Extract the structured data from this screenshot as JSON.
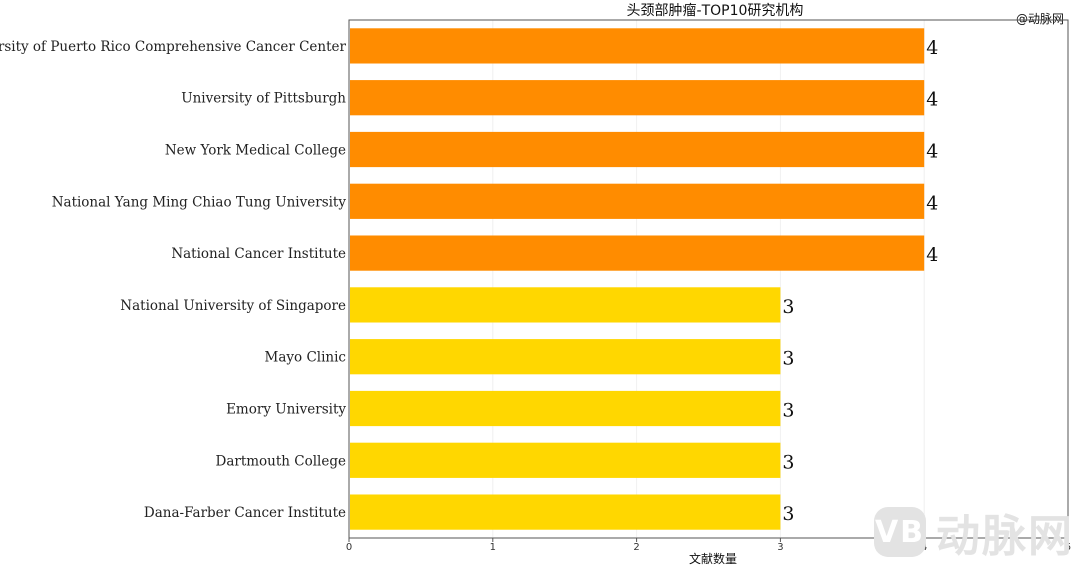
{
  "header": {
    "credit": "@动脉网"
  },
  "watermark": {
    "badge": "VB",
    "text": "动脉网"
  },
  "chart_data": {
    "type": "bar",
    "orientation": "horizontal",
    "title": "头颈部肿瘤-TOP10研究机构",
    "xlabel": "文献数量",
    "ylabel": "",
    "xlim": [
      0,
      5
    ],
    "xticks": [
      0,
      1,
      2,
      3,
      4,
      5
    ],
    "grid": true,
    "legend": "none",
    "categories": [
      "University of Puerto Rico Comprehensive Cancer Center",
      "University of Pittsburgh",
      "New York Medical College",
      "National Yang Ming Chiao Tung University",
      "National Cancer Institute",
      "National University of Singapore",
      "Mayo Clinic",
      "Emory University",
      "Dartmouth College",
      "Dana-Farber Cancer Institute"
    ],
    "values": [
      4,
      4,
      4,
      4,
      4,
      3,
      3,
      3,
      3,
      3
    ],
    "colors": {
      "4": "#FF8C00",
      "3": "#FFD700"
    }
  }
}
